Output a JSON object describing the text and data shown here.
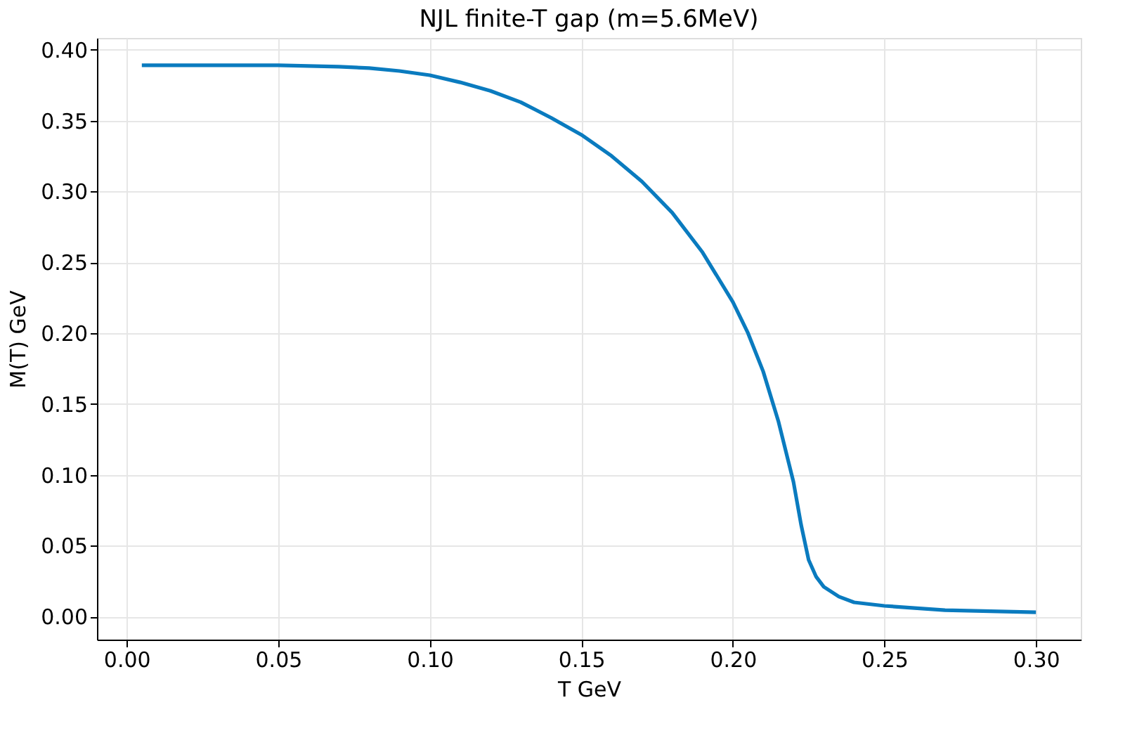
{
  "chart_data": {
    "type": "line",
    "title": "NJL finite-T gap (m=5.6MeV)",
    "xlabel": "T GeV",
    "ylabel": "M(T) GeV",
    "x": [
      0.005,
      0.05,
      0.07,
      0.08,
      0.09,
      0.1,
      0.11,
      0.12,
      0.13,
      0.14,
      0.15,
      0.16,
      0.17,
      0.18,
      0.19,
      0.2,
      0.205,
      0.21,
      0.215,
      0.22,
      0.2225,
      0.225,
      0.2275,
      0.23,
      0.235,
      0.24,
      0.25,
      0.26,
      0.27,
      0.28,
      0.29,
      0.3
    ],
    "series": [
      {
        "color": "#0a7bbf",
        "values": [
          0.389,
          0.389,
          0.388,
          0.387,
          0.385,
          0.382,
          0.377,
          0.371,
          0.363,
          0.352,
          0.34,
          0.325,
          0.307,
          0.285,
          0.257,
          0.222,
          0.2,
          0.173,
          0.138,
          0.095,
          0.065,
          0.04,
          0.028,
          0.021,
          0.014,
          0.01,
          0.0075,
          0.006,
          0.0045,
          0.004,
          0.0035,
          0.003
        ]
      }
    ],
    "xlim": [
      -0.0098,
      0.3148
    ],
    "ylim": [
      -0.0163,
      0.4083
    ],
    "xticks": [
      {
        "value": 0,
        "label": "0.00"
      },
      {
        "value": 0.05,
        "label": "0.05"
      },
      {
        "value": 0.1,
        "label": "0.10"
      },
      {
        "value": 0.15,
        "label": "0.15"
      },
      {
        "value": 0.2,
        "label": "0.20"
      },
      {
        "value": 0.25,
        "label": "0.25"
      },
      {
        "value": 0.3,
        "label": "0.30"
      }
    ],
    "yticks": [
      {
        "value": 0,
        "label": "0.00"
      },
      {
        "value": 0.05,
        "label": "0.05"
      },
      {
        "value": 0.1,
        "label": "0.10"
      },
      {
        "value": 0.15,
        "label": "0.15"
      },
      {
        "value": 0.2,
        "label": "0.20"
      },
      {
        "value": 0.25,
        "label": "0.25"
      },
      {
        "value": 0.3,
        "label": "0.30"
      },
      {
        "value": 0.35,
        "label": "0.35"
      },
      {
        "value": 0.4,
        "label": "0.40"
      }
    ],
    "grid": true,
    "line_style": "solid"
  }
}
